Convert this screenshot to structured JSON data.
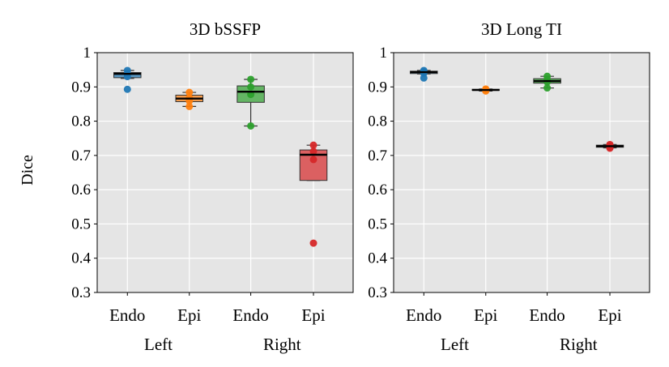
{
  "figure": {
    "ylabel": "Dice",
    "group_labels": [
      "Left",
      "Right"
    ]
  },
  "chart_data": [
    {
      "type": "box",
      "title": "3D bSSFP",
      "ylabel": "Dice",
      "ylim": [
        0.3,
        1.0
      ],
      "yticks": [
        "0.3",
        "0.4",
        "0.5",
        "0.6",
        "0.7",
        "0.8",
        "0.9",
        "1"
      ],
      "categories": [
        "Endo",
        "Epi",
        "Endo",
        "Epi"
      ],
      "groups": [
        "Left",
        "Left",
        "Right",
        "Right"
      ],
      "grid": true,
      "series": [
        {
          "color": "#1f77b4",
          "box": {
            "whisker_low": 0.925,
            "q1": 0.927,
            "median": 0.938,
            "q3": 0.942,
            "whisker_high": 0.948
          },
          "points": [
            0.948,
            0.938,
            0.93,
            0.893
          ]
        },
        {
          "color": "#ff7f0e",
          "box": {
            "whisker_low": 0.843,
            "q1": 0.857,
            "median": 0.866,
            "q3": 0.876,
            "whisker_high": 0.884
          },
          "points": [
            0.884,
            0.868,
            0.859,
            0.843
          ]
        },
        {
          "color": "#2ca02c",
          "box": {
            "whisker_low": 0.786,
            "q1": 0.855,
            "median": 0.886,
            "q3": 0.903,
            "whisker_high": 0.922
          },
          "points": [
            0.922,
            0.9,
            0.878,
            0.786
          ]
        },
        {
          "color": "#d62728",
          "box": {
            "whisker_low": 0.627,
            "q1": 0.627,
            "median": 0.702,
            "q3": 0.716,
            "whisker_high": 0.73
          },
          "points": [
            0.73,
            0.712,
            0.688,
            0.444
          ]
        }
      ]
    },
    {
      "type": "box",
      "title": "3D Long TI",
      "ylim": [
        0.3,
        1.0
      ],
      "yticks": [
        "0.3",
        "0.4",
        "0.5",
        "0.6",
        "0.7",
        "0.8",
        "0.9",
        "1"
      ],
      "categories": [
        "Endo",
        "Epi",
        "Endo",
        "Epi"
      ],
      "groups": [
        "Left",
        "Left",
        "Right",
        "Right"
      ],
      "grid": true,
      "series": [
        {
          "color": "#1f77b4",
          "box": {
            "whisker_low": 0.938,
            "q1": 0.939,
            "median": 0.943,
            "q3": 0.946,
            "whisker_high": 0.948
          },
          "points": [
            0.948,
            0.944,
            0.94,
            0.926
          ]
        },
        {
          "color": "#ff7f0e",
          "box": {
            "whisker_low": 0.888,
            "q1": 0.89,
            "median": 0.891,
            "q3": 0.893,
            "whisker_high": 0.894
          },
          "points": [
            0.894,
            0.891,
            0.888
          ]
        },
        {
          "color": "#2ca02c",
          "box": {
            "whisker_low": 0.897,
            "q1": 0.911,
            "median": 0.917,
            "q3": 0.924,
            "whisker_high": 0.931
          },
          "points": [
            0.931,
            0.922,
            0.914,
            0.897
          ]
        },
        {
          "color": "#d62728",
          "box": {
            "whisker_low": 0.722,
            "q1": 0.724,
            "median": 0.727,
            "q3": 0.73,
            "whisker_high": 0.732
          },
          "points": [
            0.732,
            0.728,
            0.724,
            0.721
          ]
        }
      ]
    }
  ]
}
